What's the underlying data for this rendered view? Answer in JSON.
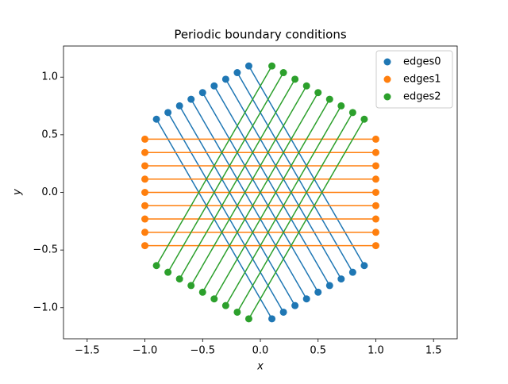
{
  "chart_data": {
    "type": "scatter",
    "title": "Periodic boundary conditions",
    "x_label": "x",
    "y_label": "y",
    "xlim": [
      -1.705,
      1.705
    ],
    "ylim": [
      -1.27,
      1.27
    ],
    "xticks": [
      {
        "value": -1.5,
        "label": "−1.5"
      },
      {
        "value": -1.0,
        "label": "−1.0"
      },
      {
        "value": -0.5,
        "label": "−0.5"
      },
      {
        "value": 0.0,
        "label": "0.0"
      },
      0.5,
      {
        "value": 1.0,
        "label": "1.0"
      },
      1.5
    ],
    "yticks": [
      {
        "value": -1.0,
        "label": "−1.0"
      },
      {
        "value": -0.5,
        "label": "−0.5"
      },
      {
        "value": 0.0,
        "label": "0.0"
      },
      0.5,
      {
        "value": 1.0,
        "label": "1.0"
      }
    ],
    "legend": "upper right",
    "series": [
      {
        "name": "edges0",
        "color": "#1f77b4",
        "x": [
          -0.1,
          0.9,
          -0.2,
          0.8,
          -0.3,
          0.7,
          -0.4,
          0.6,
          -0.5,
          0.5,
          -0.6,
          0.4,
          -0.7,
          0.3,
          -0.8,
          0.2,
          -0.9,
          0.1
        ],
        "y": [
          1.097,
          -0.635,
          1.039,
          -0.693,
          0.982,
          -0.751,
          0.924,
          -0.808,
          0.866,
          -0.866,
          0.808,
          -0.924,
          0.751,
          -0.982,
          0.693,
          -1.039,
          0.635,
          -1.097
        ]
      },
      {
        "name": "edges1",
        "color": "#ff7f0e",
        "x": [
          -1,
          1,
          -1,
          1,
          -1,
          1,
          -1,
          1,
          -1,
          1,
          -1,
          1,
          -1,
          1,
          -1,
          1,
          -1,
          1
        ],
        "y": [
          0.462,
          0.462,
          0.346,
          0.346,
          0.231,
          0.231,
          0.115,
          0.115,
          0,
          0,
          -0.115,
          -0.115,
          -0.231,
          -0.231,
          -0.346,
          -0.346,
          -0.462,
          -0.462
        ]
      },
      {
        "name": "edges2",
        "color": "#2ca02c",
        "x": [
          -0.9,
          0.1,
          -0.8,
          0.2,
          -0.7,
          0.3,
          -0.6,
          0.4,
          -0.5,
          0.5,
          -0.4,
          0.6,
          -0.3,
          0.7,
          -0.2,
          0.8,
          -0.1,
          0.9
        ],
        "y": [
          -0.635,
          1.097,
          -0.693,
          1.039,
          -0.751,
          0.982,
          -0.808,
          0.924,
          -0.866,
          0.866,
          -0.924,
          0.808,
          -0.982,
          0.751,
          -1.039,
          0.693,
          -1.097,
          0.635
        ]
      }
    ]
  }
}
